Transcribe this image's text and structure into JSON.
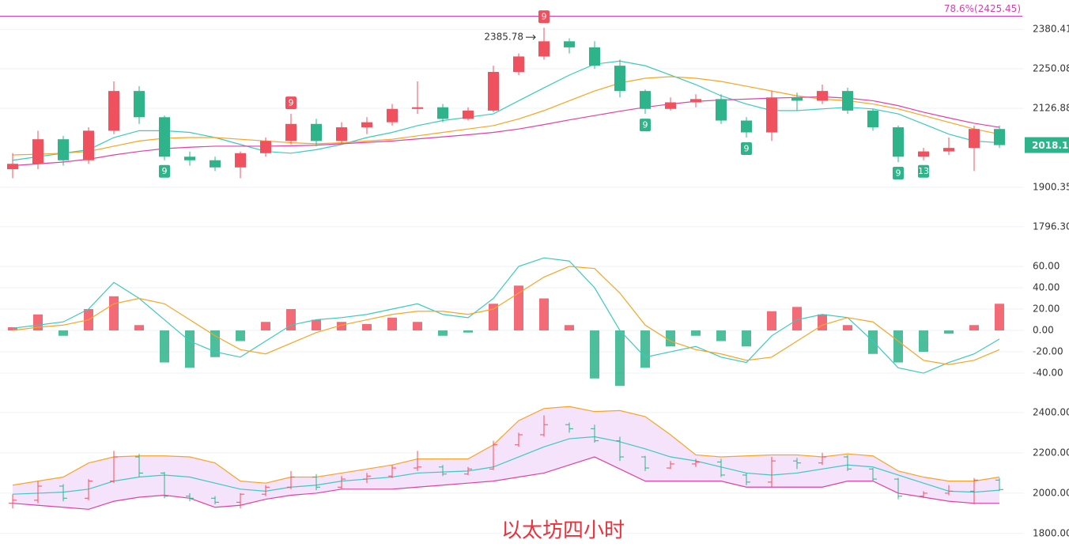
{
  "chart_data": [
    {
      "type": "candlestick",
      "log_scale": true,
      "ylim": [
        1760,
        2482
      ],
      "yticks": [
        2380.41,
        2250.08,
        2126.88,
        1900.35,
        {
          "value": 1796.3,
          "label": "1796.30"
        }
      ],
      "grid": true,
      "up_color": "#f0515f",
      "down_color": "#2eb38a",
      "open": [
        1950,
        1965,
        2035,
        1975,
        2060,
        2180,
        2100,
        1985,
        1975,
        1955,
        1995,
        2030,
        2080,
        2030,
        2070,
        2085,
        2125,
        2130,
        2095,
        2120,
        2240,
        2290,
        2340,
        2320,
        2260,
        2180,
        2125,
        2145,
        2155,
        2090,
        2055,
        2160,
        2150,
        2180,
        2120,
        2070,
        1985,
        2000,
        2010,
        2065
      ],
      "high": [
        1995,
        2060,
        2045,
        2070,
        2210,
        2195,
        2105,
        2000,
        1985,
        2000,
        2040,
        2110,
        2095,
        2085,
        2100,
        2140,
        2210,
        2140,
        2130,
        2260,
        2300,
        2385.78,
        2350,
        2340,
        2280,
        2185,
        2160,
        2170,
        2170,
        2100,
        2180,
        2175,
        2200,
        2190,
        2125,
        2075,
        2010,
        2040,
        2075,
        2075
      ],
      "low": [
        1925,
        1950,
        1960,
        1965,
        2050,
        2080,
        1975,
        1960,
        1945,
        1925,
        1985,
        2020,
        2015,
        2020,
        2050,
        2075,
        2110,
        2085,
        2090,
        2115,
        2230,
        2280,
        2300,
        2250,
        2160,
        2110,
        2120,
        2130,
        2080,
        2040,
        2030,
        2120,
        2140,
        2110,
        2060,
        1970,
        1975,
        1990,
        1945,
        2010
      ],
      "close": [
        1965,
        2035,
        1975,
        2060,
        2180,
        2100,
        1985,
        1975,
        1955,
        1995,
        2030,
        2080,
        2030,
        2070,
        2085,
        2125,
        2130,
        2095,
        2120,
        2240,
        2290,
        2340,
        2320,
        2260,
        2180,
        2125,
        2145,
        2155,
        2090,
        2055,
        2160,
        2150,
        2180,
        2120,
        2070,
        1985,
        2000,
        2010,
        2065,
        2018.18
      ],
      "series": [
        {
          "color": "#3cc9c0",
          "values": [
            1975,
            1985,
            1995,
            2005,
            2040,
            2060,
            2060,
            2055,
            2040,
            2020,
            2000,
            1995,
            2005,
            2020,
            2040,
            2055,
            2075,
            2090,
            2100,
            2110,
            2150,
            2190,
            2230,
            2265,
            2275,
            2260,
            2230,
            2200,
            2165,
            2140,
            2120,
            2120,
            2125,
            2130,
            2125,
            2110,
            2080,
            2050,
            2030,
            2025
          ]
        },
        {
          "color": "#f5a623",
          "values": [
            1990,
            1992,
            1995,
            2000,
            2015,
            2030,
            2038,
            2040,
            2040,
            2035,
            2030,
            2025,
            2022,
            2025,
            2030,
            2035,
            2045,
            2055,
            2065,
            2075,
            2095,
            2120,
            2150,
            2180,
            2205,
            2220,
            2225,
            2220,
            2210,
            2195,
            2180,
            2165,
            2155,
            2150,
            2140,
            2125,
            2105,
            2085,
            2065,
            2050
          ]
        },
        {
          "color": "#e040a8",
          "values": [
            1960,
            1965,
            1970,
            1978,
            1990,
            2000,
            2008,
            2012,
            2015,
            2015,
            2015,
            2016,
            2018,
            2022,
            2026,
            2030,
            2036,
            2042,
            2048,
            2055,
            2065,
            2078,
            2092,
            2105,
            2118,
            2130,
            2140,
            2148,
            2152,
            2155,
            2158,
            2160,
            2162,
            2158,
            2150,
            2135,
            2115,
            2098,
            2082,
            2070
          ]
        }
      ],
      "level": {
        "label": "78.6%(2425.45)",
        "value": 2425.45,
        "color": "#d63fb0"
      },
      "markers": [
        {
          "label": "9",
          "at": 6,
          "side": "below"
        },
        {
          "label": "9",
          "at": 11,
          "side": "above"
        },
        {
          "label": "9",
          "at": 21,
          "side": "above"
        },
        {
          "label": "9",
          "at": 25,
          "side": "below"
        },
        {
          "label": "9",
          "at": 29,
          "side": "below"
        },
        {
          "label": "9",
          "at": 35,
          "side": "below"
        },
        {
          "label": "13",
          "at": 36,
          "side": "below"
        }
      ]
    },
    {
      "type": "macd",
      "ylim": [
        -57,
        80
      ],
      "yticks": [
        {
          "value": 60,
          "label": "60.00"
        },
        {
          "value": 40,
          "label": "40.00"
        },
        {
          "value": 20,
          "label": "20.00"
        },
        {
          "value": 0,
          "label": "0.00"
        },
        {
          "value": -20,
          "label": "-20.00"
        },
        {
          "value": -40,
          "label": "-40.00"
        }
      ],
      "grid": true,
      "up_color": "#f0515f",
      "down_color": "#2eb38a",
      "histogram": [
        3,
        15,
        -5,
        20,
        32,
        5,
        -30,
        -35,
        -25,
        -10,
        8,
        20,
        10,
        8,
        6,
        12,
        8,
        -5,
        -2,
        25,
        42,
        30,
        5,
        -45,
        -52,
        -35,
        -15,
        -5,
        -10,
        -15,
        18,
        22,
        15,
        5,
        -22,
        -30,
        -20,
        -3,
        5,
        25
      ],
      "series": [
        {
          "color": "#3cc9c0",
          "values": [
            2,
            5,
            8,
            20,
            45,
            30,
            10,
            -10,
            -20,
            -25,
            -10,
            5,
            10,
            12,
            15,
            20,
            25,
            15,
            12,
            30,
            60,
            68,
            65,
            40,
            0,
            -25,
            -20,
            -15,
            -25,
            -30,
            -5,
            10,
            15,
            12,
            -10,
            -35,
            -40,
            -30,
            -22,
            -8
          ]
        },
        {
          "color": "#f5a623",
          "values": [
            0,
            3,
            5,
            10,
            25,
            30,
            25,
            10,
            -5,
            -18,
            -22,
            -12,
            -2,
            5,
            10,
            15,
            18,
            18,
            15,
            20,
            35,
            50,
            60,
            58,
            35,
            5,
            -10,
            -18,
            -22,
            -28,
            -25,
            -10,
            5,
            12,
            8,
            -10,
            -28,
            -32,
            -28,
            -18
          ]
        }
      ]
    },
    {
      "type": "bollinger",
      "ylim": [
        1733,
        2486
      ],
      "yticks": [
        {
          "value": 2400,
          "label": "2400.00"
        },
        {
          "value": 2200,
          "label": "2200.00"
        },
        {
          "value": 2000,
          "label": "2000.00"
        },
        {
          "value": 1800,
          "label": "1800.00"
        }
      ],
      "grid": true,
      "band_color": "#f4e3fa",
      "series": [
        {
          "color": "#f5a623",
          "values": [
            2040,
            2060,
            2080,
            2150,
            2180,
            2185,
            2185,
            2180,
            2150,
            2060,
            2050,
            2080,
            2080,
            2100,
            2120,
            2140,
            2170,
            2170,
            2170,
            2240,
            2360,
            2420,
            2430,
            2405,
            2410,
            2380,
            2290,
            2190,
            2180,
            2185,
            2190,
            2190,
            2180,
            2195,
            2185,
            2110,
            2080,
            2060,
            2060,
            2080
          ]
        },
        {
          "color": "#3cc9c0",
          "values": [
            1995,
            2000,
            2005,
            2020,
            2060,
            2080,
            2090,
            2080,
            2050,
            2020,
            2010,
            2030,
            2040,
            2060,
            2070,
            2080,
            2100,
            2105,
            2110,
            2130,
            2180,
            2230,
            2270,
            2280,
            2255,
            2220,
            2180,
            2160,
            2130,
            2100,
            2090,
            2100,
            2120,
            2140,
            2130,
            2090,
            2050,
            2010,
            2005,
            2015
          ]
        },
        {
          "color": "#e040a8",
          "values": [
            1950,
            1940,
            1930,
            1920,
            1960,
            1980,
            1990,
            1975,
            1930,
            1940,
            1970,
            1990,
            2000,
            2020,
            2020,
            2020,
            2030,
            2040,
            2050,
            2060,
            2080,
            2100,
            2140,
            2180,
            2120,
            2060,
            2060,
            2060,
            2060,
            2030,
            2030,
            2030,
            2030,
            2060,
            2060,
            2000,
            1980,
            1960,
            1950,
            1950
          ]
        }
      ]
    }
  ],
  "watermark": "以太坊四小时"
}
